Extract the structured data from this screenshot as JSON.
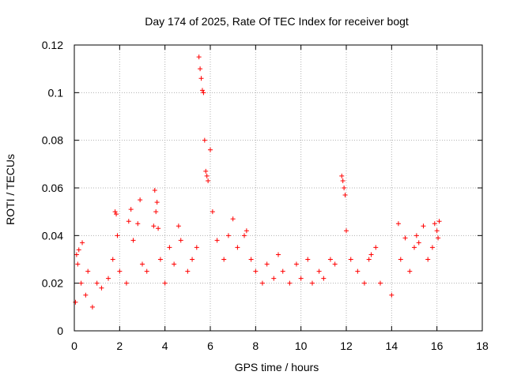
{
  "chart_data": {
    "type": "scatter",
    "title": "Day 174 of 2025, Rate Of TEC Index for receiver bogt",
    "xlabel": "GPS time / hours",
    "ylabel": "ROTI / TECUs",
    "xlim": [
      0,
      18
    ],
    "ylim": [
      0,
      0.12
    ],
    "x_ticks": [
      0,
      2,
      4,
      6,
      8,
      10,
      12,
      14,
      16,
      18
    ],
    "y_ticks": [
      0,
      0.02,
      0.04,
      0.06,
      0.08,
      0.1,
      0.12
    ],
    "grid": true,
    "marker": "+",
    "color": "#ff0000",
    "series": [
      {
        "name": "ROTI",
        "x": [
          0.05,
          0.1,
          0.15,
          0.2,
          0.3,
          0.35,
          0.5,
          0.6,
          0.8,
          1.0,
          1.2,
          1.5,
          1.7,
          1.8,
          1.85,
          1.9,
          2.0,
          2.3,
          2.4,
          2.5,
          2.6,
          2.8,
          2.9,
          3.0,
          3.2,
          3.5,
          3.55,
          3.6,
          3.65,
          3.7,
          3.8,
          4.0,
          4.2,
          4.4,
          4.6,
          4.7,
          5.0,
          5.2,
          5.4,
          5.5,
          5.55,
          5.6,
          5.65,
          5.7,
          5.75,
          5.8,
          5.85,
          5.9,
          6.0,
          6.1,
          6.3,
          6.6,
          6.8,
          7.0,
          7.2,
          7.5,
          7.6,
          7.8,
          8.0,
          8.3,
          8.5,
          8.8,
          9.0,
          9.2,
          9.5,
          9.8,
          10.0,
          10.3,
          10.5,
          10.8,
          11.0,
          11.3,
          11.5,
          11.8,
          11.85,
          11.9,
          11.95,
          12.0,
          12.2,
          12.5,
          12.8,
          13.0,
          13.1,
          13.3,
          13.5,
          14.0,
          14.3,
          14.4,
          14.6,
          14.8,
          15.0,
          15.1,
          15.2,
          15.4,
          15.6,
          15.8,
          15.9,
          16.0,
          16.05,
          16.1
        ],
        "y": [
          0.012,
          0.032,
          0.028,
          0.034,
          0.02,
          0.037,
          0.015,
          0.025,
          0.01,
          0.02,
          0.018,
          0.022,
          0.03,
          0.05,
          0.049,
          0.04,
          0.025,
          0.02,
          0.046,
          0.051,
          0.038,
          0.045,
          0.055,
          0.028,
          0.025,
          0.044,
          0.059,
          0.05,
          0.054,
          0.043,
          0.03,
          0.02,
          0.035,
          0.028,
          0.044,
          0.038,
          0.025,
          0.03,
          0.035,
          0.115,
          0.11,
          0.106,
          0.101,
          0.1,
          0.08,
          0.067,
          0.065,
          0.063,
          0.076,
          0.05,
          0.038,
          0.03,
          0.04,
          0.047,
          0.035,
          0.04,
          0.042,
          0.03,
          0.025,
          0.02,
          0.028,
          0.022,
          0.032,
          0.025,
          0.02,
          0.028,
          0.022,
          0.03,
          0.02,
          0.025,
          0.022,
          0.03,
          0.028,
          0.065,
          0.063,
          0.06,
          0.057,
          0.042,
          0.03,
          0.025,
          0.02,
          0.03,
          0.032,
          0.035,
          0.02,
          0.015,
          0.045,
          0.03,
          0.039,
          0.025,
          0.035,
          0.04,
          0.037,
          0.044,
          0.03,
          0.035,
          0.045,
          0.042,
          0.039,
          0.046
        ]
      }
    ]
  }
}
